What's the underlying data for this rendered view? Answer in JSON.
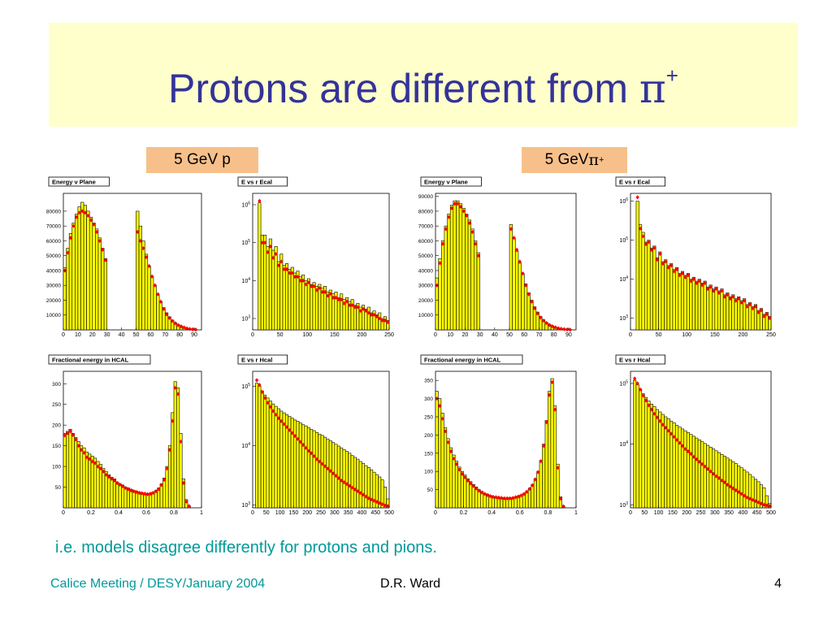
{
  "slide": {
    "title_main": "Protons are different from ",
    "title_symbol": "π",
    "title_sup": "+",
    "caption": "i.e. models disagree differently for protons and pions.",
    "footer_left": "Calice Meeting / DESY/January 2004",
    "footer_mid": "D.R. Ward",
    "footer_right": "4"
  },
  "columns": [
    {
      "label_main": "5 GeV p",
      "label_symbol": "",
      "label_sup": ""
    },
    {
      "label_main": "5 GeV ",
      "label_symbol": "π",
      "label_sup": "+"
    }
  ],
  "colors": {
    "histogram_fill": "#ffff00",
    "histogram_line": "#000000",
    "data_points": "#ff0000",
    "title_box": "#ffffcc",
    "title_text": "#333399",
    "label_box": "#f7c08a",
    "caption_text": "#009999"
  },
  "chart_data": [
    {
      "id": "p-energy-v-plane",
      "type": "histogram",
      "title": "Energy v Plane",
      "xlim": [
        0,
        95
      ],
      "ylim": [
        0,
        92000
      ],
      "log_y": false,
      "xticks": [
        0,
        10,
        20,
        30,
        40,
        50,
        60,
        70,
        80,
        90
      ],
      "yticks": [
        10000,
        20000,
        30000,
        40000,
        50000,
        60000,
        70000,
        80000
      ],
      "x": [
        0,
        2,
        4,
        6,
        8,
        10,
        12,
        14,
        16,
        18,
        20,
        22,
        24,
        26,
        28,
        30,
        50,
        52,
        54,
        56,
        58,
        60,
        62,
        64,
        66,
        68,
        70,
        72,
        74,
        76,
        78,
        80,
        82,
        84,
        86,
        88,
        90,
        92
      ],
      "sim": [
        42000,
        55000,
        65000,
        72000,
        78000,
        83000,
        86000,
        84000,
        80000,
        76000,
        72000,
        68000,
        62000,
        55000,
        48000,
        0,
        80000,
        70000,
        60000,
        51000,
        43000,
        36000,
        30000,
        24000,
        19000,
        15000,
        11500,
        8800,
        6600,
        4800,
        3500,
        2500,
        1700,
        1100,
        700,
        400,
        200,
        0
      ],
      "data": [
        40000,
        52000,
        62000,
        70000,
        76000,
        79000,
        80000,
        79000,
        77000,
        74000,
        71000,
        66000,
        60000,
        54000,
        47000,
        null,
        66000,
        60000,
        55000,
        49000,
        43000,
        36000,
        30000,
        24000,
        19000,
        14000,
        10500,
        8000,
        6000,
        4400,
        3200,
        2300,
        1600,
        1000,
        600,
        350,
        150,
        null
      ]
    },
    {
      "id": "p-e-vs-r-ecal",
      "type": "histogram",
      "title": "E vs r Ecal",
      "xlim": [
        0,
        250
      ],
      "ylim_log": [
        2.7,
        6.3
      ],
      "log_y": true,
      "xticks": [
        0,
        50,
        100,
        150,
        200,
        250
      ],
      "yticks_log": [
        3,
        4,
        5,
        6
      ],
      "x": [
        10,
        15,
        20,
        25,
        30,
        35,
        40,
        45,
        50,
        55,
        60,
        65,
        70,
        75,
        80,
        85,
        90,
        95,
        100,
        105,
        110,
        115,
        120,
        125,
        130,
        135,
        140,
        145,
        150,
        155,
        160,
        165,
        170,
        175,
        180,
        185,
        190,
        195,
        200,
        205,
        210,
        215,
        220,
        225,
        230,
        235,
        240,
        245
      ],
      "sim": [
        6.05,
        5.2,
        5.2,
        4.9,
        5.1,
        4.8,
        4.9,
        4.5,
        4.7,
        4.4,
        4.45,
        4.3,
        4.35,
        4.2,
        4.25,
        4.1,
        4.15,
        4.0,
        4.05,
        3.9,
        3.95,
        3.85,
        3.9,
        3.8,
        3.85,
        3.7,
        3.75,
        3.65,
        3.7,
        3.55,
        3.65,
        3.5,
        3.55,
        3.45,
        3.5,
        3.35,
        3.4,
        3.3,
        3.35,
        3.25,
        3.3,
        3.15,
        3.2,
        3.1,
        3.15,
        3.0,
        3.05,
        2.95
      ],
      "data": [
        6.1,
        5.0,
        5.0,
        4.75,
        4.9,
        4.6,
        4.7,
        4.4,
        4.5,
        4.3,
        4.3,
        4.2,
        4.2,
        4.1,
        4.1,
        4.0,
        4.0,
        3.9,
        3.95,
        3.85,
        3.85,
        3.75,
        3.8,
        3.7,
        3.7,
        3.6,
        3.65,
        3.55,
        3.55,
        3.5,
        3.5,
        3.4,
        3.45,
        3.35,
        3.35,
        3.3,
        3.3,
        3.2,
        3.25,
        3.2,
        3.15,
        3.1,
        3.1,
        3.05,
        3.0,
        2.95,
        2.95,
        2.9
      ]
    },
    {
      "id": "p-frac-energy-hcal",
      "type": "histogram",
      "title": "Fractional energy in HCAL",
      "xlim": [
        0,
        1
      ],
      "ylim": [
        0,
        330
      ],
      "log_y": false,
      "xticks": [
        0,
        0.2,
        0.4,
        0.6,
        0.8,
        1
      ],
      "yticks": [
        50,
        100,
        150,
        200,
        250,
        300
      ],
      "x": [
        0.0,
        0.02,
        0.04,
        0.06,
        0.08,
        0.1,
        0.12,
        0.14,
        0.16,
        0.18,
        0.2,
        0.22,
        0.24,
        0.26,
        0.28,
        0.3,
        0.32,
        0.34,
        0.36,
        0.38,
        0.4,
        0.42,
        0.44,
        0.46,
        0.48,
        0.5,
        0.52,
        0.54,
        0.56,
        0.58,
        0.6,
        0.62,
        0.64,
        0.66,
        0.68,
        0.7,
        0.72,
        0.74,
        0.76,
        0.78,
        0.8,
        0.82,
        0.84,
        0.86,
        0.88,
        0.9,
        0.92
      ],
      "sim": [
        180,
        185,
        190,
        180,
        170,
        160,
        150,
        145,
        135,
        130,
        125,
        120,
        112,
        105,
        95,
        88,
        80,
        74,
        70,
        62,
        58,
        55,
        50,
        48,
        45,
        42,
        40,
        38,
        36,
        35,
        34,
        35,
        38,
        42,
        48,
        58,
        72,
        100,
        150,
        230,
        305,
        290,
        180,
        70,
        20,
        5,
        0
      ],
      "data": [
        175,
        180,
        185,
        176,
        165,
        150,
        140,
        133,
        122,
        118,
        112,
        108,
        100,
        95,
        88,
        80,
        75,
        70,
        66,
        60,
        56,
        52,
        48,
        45,
        42,
        40,
        38,
        36,
        35,
        34,
        33,
        34,
        36,
        40,
        45,
        55,
        68,
        95,
        140,
        210,
        290,
        275,
        160,
        60,
        15,
        4,
        null
      ]
    },
    {
      "id": "p-e-vs-r-hcal",
      "type": "histogram",
      "title": "E vs r Hcal",
      "xlim": [
        0,
        500
      ],
      "ylim_log": [
        2.95,
        5.25
      ],
      "log_y": true,
      "xticks": [
        0,
        50,
        100,
        150,
        200,
        250,
        300,
        350,
        400,
        450,
        500
      ],
      "yticks_log": [
        3,
        4,
        5
      ],
      "x": [
        10,
        20,
        30,
        40,
        50,
        60,
        70,
        80,
        90,
        100,
        110,
        120,
        130,
        140,
        150,
        160,
        170,
        180,
        190,
        200,
        210,
        220,
        230,
        240,
        250,
        260,
        270,
        280,
        290,
        300,
        310,
        320,
        330,
        340,
        350,
        360,
        370,
        380,
        390,
        400,
        410,
        420,
        430,
        440,
        450,
        460,
        470,
        480,
        490
      ],
      "sim": [
        5.05,
        5.0,
        4.92,
        4.85,
        4.8,
        4.75,
        4.7,
        4.66,
        4.62,
        4.58,
        4.55,
        4.52,
        4.49,
        4.46,
        4.43,
        4.41,
        4.38,
        4.35,
        4.33,
        4.3,
        4.27,
        4.25,
        4.22,
        4.19,
        4.17,
        4.14,
        4.11,
        4.08,
        4.05,
        4.02,
        3.99,
        3.96,
        3.93,
        3.9,
        3.87,
        3.83,
        3.8,
        3.77,
        3.73,
        3.7,
        3.66,
        3.63,
        3.59,
        3.55,
        3.51,
        3.47,
        3.42,
        3.3,
        3.1
      ],
      "data": [
        5.1,
        5.02,
        4.9,
        4.8,
        4.72,
        4.65,
        4.58,
        4.52,
        4.46,
        4.41,
        4.36,
        4.31,
        4.26,
        4.21,
        4.16,
        4.11,
        4.06,
        4.01,
        3.96,
        3.91,
        3.87,
        3.82,
        3.77,
        3.73,
        3.69,
        3.65,
        3.61,
        3.57,
        3.53,
        3.49,
        3.45,
        3.41,
        3.38,
        3.35,
        3.32,
        3.29,
        3.26,
        3.23,
        3.2,
        3.17,
        3.14,
        3.11,
        3.09,
        3.07,
        3.05,
        3.03,
        3.01,
        2.99,
        2.98
      ]
    },
    {
      "id": "pi-energy-v-plane",
      "type": "histogram",
      "title": "Energy v Plane",
      "xlim": [
        0,
        95
      ],
      "ylim": [
        0,
        92000
      ],
      "log_y": false,
      "xticks": [
        0,
        10,
        20,
        30,
        40,
        50,
        60,
        70,
        80,
        90
      ],
      "yticks": [
        10000,
        20000,
        30000,
        40000,
        50000,
        60000,
        70000,
        80000,
        90000
      ],
      "x": [
        0,
        2,
        4,
        6,
        8,
        10,
        12,
        14,
        16,
        18,
        20,
        22,
        24,
        26,
        28,
        30,
        50,
        52,
        54,
        56,
        58,
        60,
        62,
        64,
        66,
        68,
        70,
        72,
        74,
        76,
        78,
        80,
        82,
        84,
        86,
        88,
        90,
        92
      ],
      "sim": [
        35000,
        48000,
        60000,
        70000,
        78000,
        84000,
        87000,
        87000,
        85000,
        82000,
        78000,
        74000,
        68000,
        60000,
        52000,
        0,
        71000,
        62000,
        53000,
        45000,
        38000,
        31000,
        25000,
        20000,
        15500,
        12000,
        9000,
        6800,
        5000,
        3600,
        2600,
        1800,
        1200,
        800,
        500,
        300,
        150,
        0
      ],
      "data": [
        30000,
        45000,
        58000,
        68000,
        76000,
        82000,
        85000,
        85000,
        83000,
        80000,
        77000,
        72000,
        66000,
        58000,
        50000,
        null,
        68000,
        62000,
        54000,
        46000,
        38000,
        30000,
        24000,
        19000,
        14500,
        11000,
        8300,
        6200,
        4600,
        3300,
        2400,
        1700,
        1100,
        700,
        450,
        250,
        120,
        null
      ]
    },
    {
      "id": "pi-e-vs-r-ecal",
      "type": "histogram",
      "title": "E vs r Ecal",
      "xlim": [
        0,
        250
      ],
      "ylim_log": [
        2.7,
        6.2
      ],
      "log_y": true,
      "xticks": [
        0,
        50,
        100,
        150,
        200,
        250
      ],
      "yticks_log": [
        3,
        4,
        5,
        6
      ],
      "x": [
        10,
        15,
        20,
        25,
        30,
        35,
        40,
        45,
        50,
        55,
        60,
        65,
        70,
        75,
        80,
        85,
        90,
        95,
        100,
        105,
        110,
        115,
        120,
        125,
        130,
        135,
        140,
        145,
        150,
        155,
        160,
        165,
        170,
        175,
        180,
        185,
        190,
        195,
        200,
        205,
        210,
        215,
        220,
        225,
        230,
        235,
        240,
        245
      ],
      "sim": [
        6.0,
        5.4,
        5.2,
        4.95,
        5.0,
        4.8,
        4.85,
        4.55,
        4.7,
        4.45,
        4.5,
        4.35,
        4.4,
        4.25,
        4.3,
        4.15,
        4.2,
        4.1,
        4.15,
        4.0,
        4.05,
        3.95,
        4.0,
        3.9,
        3.95,
        3.8,
        3.85,
        3.75,
        3.8,
        3.7,
        3.75,
        3.6,
        3.65,
        3.55,
        3.6,
        3.5,
        3.55,
        3.45,
        3.5,
        3.35,
        3.4,
        3.3,
        3.35,
        3.2,
        3.25,
        3.1,
        3.15,
        3.05
      ],
      "data": [
        6.1,
        5.3,
        5.1,
        4.9,
        4.95,
        4.75,
        4.8,
        4.5,
        4.65,
        4.4,
        4.45,
        4.3,
        4.35,
        4.2,
        4.25,
        4.1,
        4.15,
        4.05,
        4.1,
        3.95,
        4.0,
        3.9,
        3.95,
        3.85,
        3.9,
        3.75,
        3.8,
        3.7,
        3.75,
        3.65,
        3.7,
        3.55,
        3.6,
        3.5,
        3.55,
        3.45,
        3.5,
        3.4,
        3.45,
        3.3,
        3.35,
        3.25,
        3.3,
        3.15,
        3.2,
        3.05,
        3.1,
        3.0
      ]
    },
    {
      "id": "pi-frac-energy-hcal",
      "type": "histogram",
      "title": "Fractional energy in HCAL",
      "xlim": [
        0,
        1
      ],
      "ylim": [
        0,
        375
      ],
      "log_y": false,
      "xticks": [
        0,
        0.2,
        0.4,
        0.6,
        0.8,
        1
      ],
      "yticks": [
        50,
        100,
        150,
        200,
        250,
        300,
        350
      ],
      "x": [
        0.0,
        0.02,
        0.04,
        0.06,
        0.08,
        0.1,
        0.12,
        0.14,
        0.16,
        0.18,
        0.2,
        0.22,
        0.24,
        0.26,
        0.28,
        0.3,
        0.32,
        0.34,
        0.36,
        0.38,
        0.4,
        0.42,
        0.44,
        0.46,
        0.48,
        0.5,
        0.52,
        0.54,
        0.56,
        0.58,
        0.6,
        0.62,
        0.64,
        0.66,
        0.68,
        0.7,
        0.72,
        0.74,
        0.76,
        0.78,
        0.8,
        0.82,
        0.84,
        0.86,
        0.88,
        0.9,
        0.92
      ],
      "sim": [
        320,
        300,
        260,
        220,
        190,
        165,
        145,
        128,
        112,
        100,
        90,
        80,
        72,
        64,
        57,
        50,
        45,
        40,
        37,
        34,
        31,
        30,
        29,
        28,
        27,
        27,
        27,
        28,
        30,
        32,
        35,
        40,
        46,
        54,
        64,
        80,
        100,
        130,
        175,
        240,
        320,
        355,
        280,
        120,
        30,
        5,
        0
      ],
      "data": [
        300,
        280,
        245,
        210,
        180,
        155,
        135,
        120,
        105,
        93,
        84,
        75,
        67,
        60,
        53,
        47,
        42,
        38,
        35,
        32,
        30,
        29,
        28,
        27,
        26,
        26,
        26,
        27,
        29,
        31,
        34,
        38,
        44,
        52,
        62,
        78,
        98,
        128,
        170,
        235,
        310,
        345,
        270,
        110,
        25,
        4,
        null
      ]
    },
    {
      "id": "pi-e-vs-r-hcal",
      "type": "histogram",
      "title": "E vs r Hcal",
      "xlim": [
        0,
        500
      ],
      "ylim_log": [
        2.95,
        5.2
      ],
      "log_y": true,
      "xticks": [
        0,
        50,
        100,
        150,
        200,
        250,
        300,
        350,
        400,
        450,
        500
      ],
      "yticks_log": [
        3,
        4,
        5
      ],
      "x": [
        10,
        20,
        30,
        40,
        50,
        60,
        70,
        80,
        90,
        100,
        110,
        120,
        130,
        140,
        150,
        160,
        170,
        180,
        190,
        200,
        210,
        220,
        230,
        240,
        250,
        260,
        270,
        280,
        290,
        300,
        310,
        320,
        330,
        340,
        350,
        360,
        370,
        380,
        390,
        400,
        410,
        420,
        430,
        440,
        450,
        460,
        470,
        480,
        490
      ],
      "sim": [
        5.05,
        4.98,
        4.9,
        4.83,
        4.77,
        4.71,
        4.66,
        4.62,
        4.57,
        4.53,
        4.49,
        4.45,
        4.42,
        4.38,
        4.35,
        4.31,
        4.28,
        4.25,
        4.22,
        4.19,
        4.16,
        4.13,
        4.1,
        4.07,
        4.04,
        4.01,
        3.98,
        3.95,
        3.92,
        3.89,
        3.86,
        3.83,
        3.8,
        3.77,
        3.74,
        3.71,
        3.68,
        3.64,
        3.61,
        3.57,
        3.54,
        3.5,
        3.46,
        3.42,
        3.38,
        3.33,
        3.28,
        3.15,
        3.02
      ],
      "data": [
        5.08,
        5.0,
        4.9,
        4.8,
        4.72,
        4.64,
        4.57,
        4.5,
        4.44,
        4.38,
        4.32,
        4.27,
        4.22,
        4.17,
        4.12,
        4.07,
        4.02,
        3.97,
        3.92,
        3.88,
        3.84,
        3.79,
        3.75,
        3.71,
        3.67,
        3.63,
        3.59,
        3.55,
        3.51,
        3.47,
        3.44,
        3.4,
        3.37,
        3.33,
        3.3,
        3.27,
        3.24,
        3.21,
        3.18,
        3.15,
        3.12,
        3.1,
        3.08,
        3.06,
        3.04,
        3.02,
        3.0,
        2.99,
        2.98
      ]
    }
  ]
}
